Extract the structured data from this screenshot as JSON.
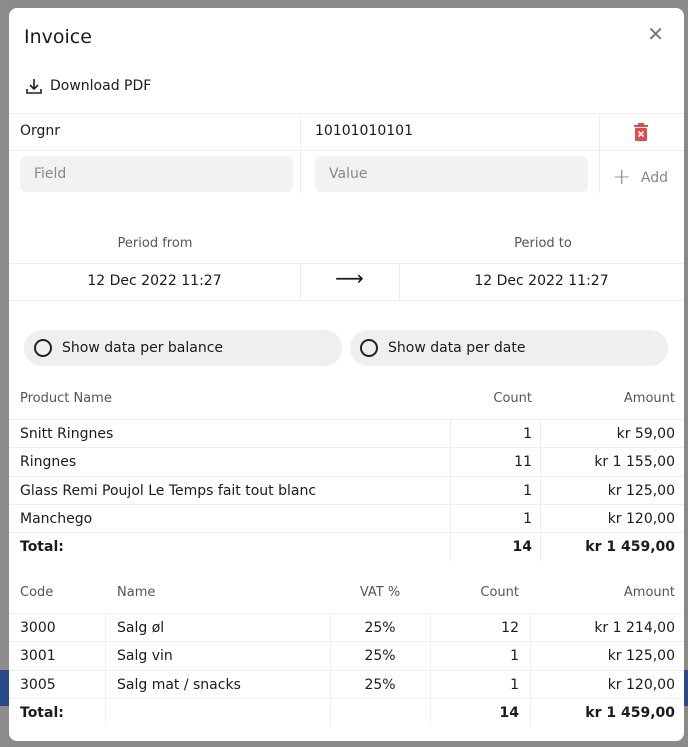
{
  "modal": {
    "title": "Invoice",
    "close_icon": "close-icon",
    "download_label": "Download PDF"
  },
  "fields": [
    {
      "field": "Orgnr",
      "value": "10101010101"
    }
  ],
  "new_field": {
    "field_placeholder": "Field",
    "value_placeholder": "Value",
    "add_label": "Add"
  },
  "period": {
    "from_label": "Period from",
    "to_label": "Period to",
    "from_value": "12 Dec 2022 11:27",
    "to_value": "12 Dec 2022 11:27",
    "arrow": "⟶"
  },
  "toggles": {
    "per_balance": "Show data per balance",
    "per_date": "Show data per date"
  },
  "products": {
    "headers": [
      "Product Name",
      "Count",
      "Amount"
    ],
    "rows": [
      [
        "Snitt Ringnes",
        "1",
        "kr 59,00"
      ],
      [
        "Ringnes",
        "11",
        "kr 1 155,00"
      ],
      [
        "Glass Remi Poujol Le Temps fait tout blanc",
        "1",
        "kr 125,00"
      ],
      [
        "Manchego",
        "1",
        "kr 120,00"
      ]
    ],
    "total": [
      "Total:",
      "14",
      "kr 1 459,00"
    ]
  },
  "accounts": {
    "headers": [
      "Code",
      "Name",
      "VAT %",
      "Count",
      "Amount"
    ],
    "rows": [
      [
        "3000",
        "Salg øl",
        "25%",
        "12",
        "kr 1 214,00"
      ],
      [
        "3001",
        "Salg vin",
        "25%",
        "1",
        "kr 125,00"
      ],
      [
        "3005",
        "Salg mat / snacks",
        "25%",
        "1",
        "kr 120,00"
      ]
    ],
    "total": [
      "Total:",
      "14",
      "kr 1 459,00"
    ]
  },
  "colors": {
    "delete": "#e04b4b",
    "overlay": "#8a8a8a"
  }
}
